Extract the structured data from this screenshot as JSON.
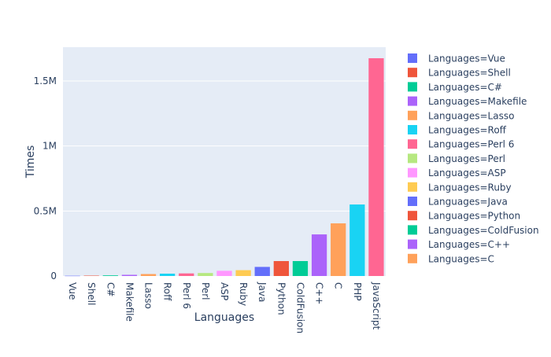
{
  "chart_data": {
    "type": "bar",
    "title": "",
    "xlabel": "Languages",
    "ylabel": "Times",
    "ylim": [
      0,
      1760000
    ],
    "yticks": [
      {
        "value": 0,
        "label": "0"
      },
      {
        "value": 500000,
        "label": "0.5M"
      },
      {
        "value": 1000000,
        "label": "1M"
      },
      {
        "value": 1500000,
        "label": "1.5M"
      }
    ],
    "grid": true,
    "legend_position": "right",
    "categories": [
      "Vue",
      "Shell",
      "C#",
      "Makefile",
      "Lasso",
      "Roff",
      "Perl 6",
      "Perl",
      "ASP",
      "Ruby",
      "Java",
      "Python",
      "ColdFusion",
      "C++",
      "C",
      "PHP",
      "JavaScript"
    ],
    "values": [
      2000,
      3000,
      5000,
      9000,
      15000,
      18000,
      20000,
      23000,
      40000,
      45000,
      70000,
      115000,
      115000,
      320000,
      405000,
      550000,
      1675000
    ],
    "colors": [
      "#636efa",
      "#EF553B",
      "#00cc96",
      "#ab63fa",
      "#FFA15A",
      "#19d3f3",
      "#FF6692",
      "#B6E880",
      "#FF97FF",
      "#FECB52",
      "#636efa",
      "#EF553B",
      "#00cc96",
      "#ab63fa",
      "#FFA15A",
      "#19d3f3",
      "#FF6692"
    ],
    "legend": [
      {
        "label": "Languages=Vue",
        "color": "#636efa"
      },
      {
        "label": "Languages=Shell",
        "color": "#EF553B"
      },
      {
        "label": "Languages=C#",
        "color": "#00cc96"
      },
      {
        "label": "Languages=Makefile",
        "color": "#ab63fa"
      },
      {
        "label": "Languages=Lasso",
        "color": "#FFA15A"
      },
      {
        "label": "Languages=Roff",
        "color": "#19d3f3"
      },
      {
        "label": "Languages=Perl 6",
        "color": "#FF6692"
      },
      {
        "label": "Languages=Perl",
        "color": "#B6E880"
      },
      {
        "label": "Languages=ASP",
        "color": "#FF97FF"
      },
      {
        "label": "Languages=Ruby",
        "color": "#FECB52"
      },
      {
        "label": "Languages=Java",
        "color": "#636efa"
      },
      {
        "label": "Languages=Python",
        "color": "#EF553B"
      },
      {
        "label": "Languages=ColdFusion",
        "color": "#00cc96"
      },
      {
        "label": "Languages=C++",
        "color": "#ab63fa"
      },
      {
        "label": "Languages=C",
        "color": "#FFA15A"
      }
    ],
    "plot_background": "#e5ecf6"
  }
}
